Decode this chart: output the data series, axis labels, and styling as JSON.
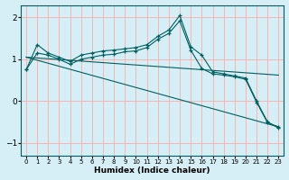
{
  "bg_color": "#d6eef5",
  "grid_color_v": "#ffaaaa",
  "grid_color_h": "#ffaaaa",
  "line_color": "#006060",
  "xlabel": "Humidex (Indice chaleur)",
  "xlim": [
    -0.5,
    23.5
  ],
  "ylim": [
    -1.3,
    2.3
  ],
  "yticks": [
    -1,
    0,
    1,
    2
  ],
  "xtick_labels": [
    "0",
    "1",
    "2",
    "3",
    "4",
    "5",
    "6",
    "7",
    "8",
    "9",
    "10",
    "11",
    "12",
    "13",
    "14",
    "15",
    "16",
    "17",
    "18",
    "19",
    "20",
    "21",
    "22",
    "23"
  ],
  "series1_x": [
    0,
    1,
    2,
    3,
    4,
    5,
    6,
    7,
    8,
    9,
    10,
    11,
    12,
    13,
    14,
    15,
    16,
    17,
    18,
    19,
    20,
    21,
    22,
    23
  ],
  "series1_y": [
    0.75,
    1.35,
    1.15,
    1.05,
    0.95,
    1.1,
    1.15,
    1.2,
    1.22,
    1.25,
    1.28,
    1.35,
    1.55,
    1.7,
    2.05,
    1.3,
    1.1,
    0.7,
    0.65,
    0.6,
    0.55,
    0.0,
    -0.5,
    -0.65
  ],
  "series2_x": [
    0,
    1,
    2,
    3,
    4,
    5,
    6,
    7,
    8,
    9,
    10,
    11,
    12,
    13,
    14,
    15,
    16,
    17,
    18,
    19,
    20,
    21,
    22,
    23
  ],
  "series2_y": [
    0.75,
    1.15,
    1.1,
    1.0,
    0.88,
    1.0,
    1.05,
    1.1,
    1.12,
    1.18,
    1.2,
    1.28,
    1.48,
    1.62,
    1.92,
    1.22,
    0.78,
    0.65,
    0.62,
    0.58,
    0.52,
    -0.03,
    -0.52,
    -0.62
  ],
  "series3_x": [
    0,
    23
  ],
  "series3_y": [
    1.05,
    0.62
  ],
  "series4_x": [
    0,
    23
  ],
  "series4_y": [
    1.05,
    -0.62
  ]
}
